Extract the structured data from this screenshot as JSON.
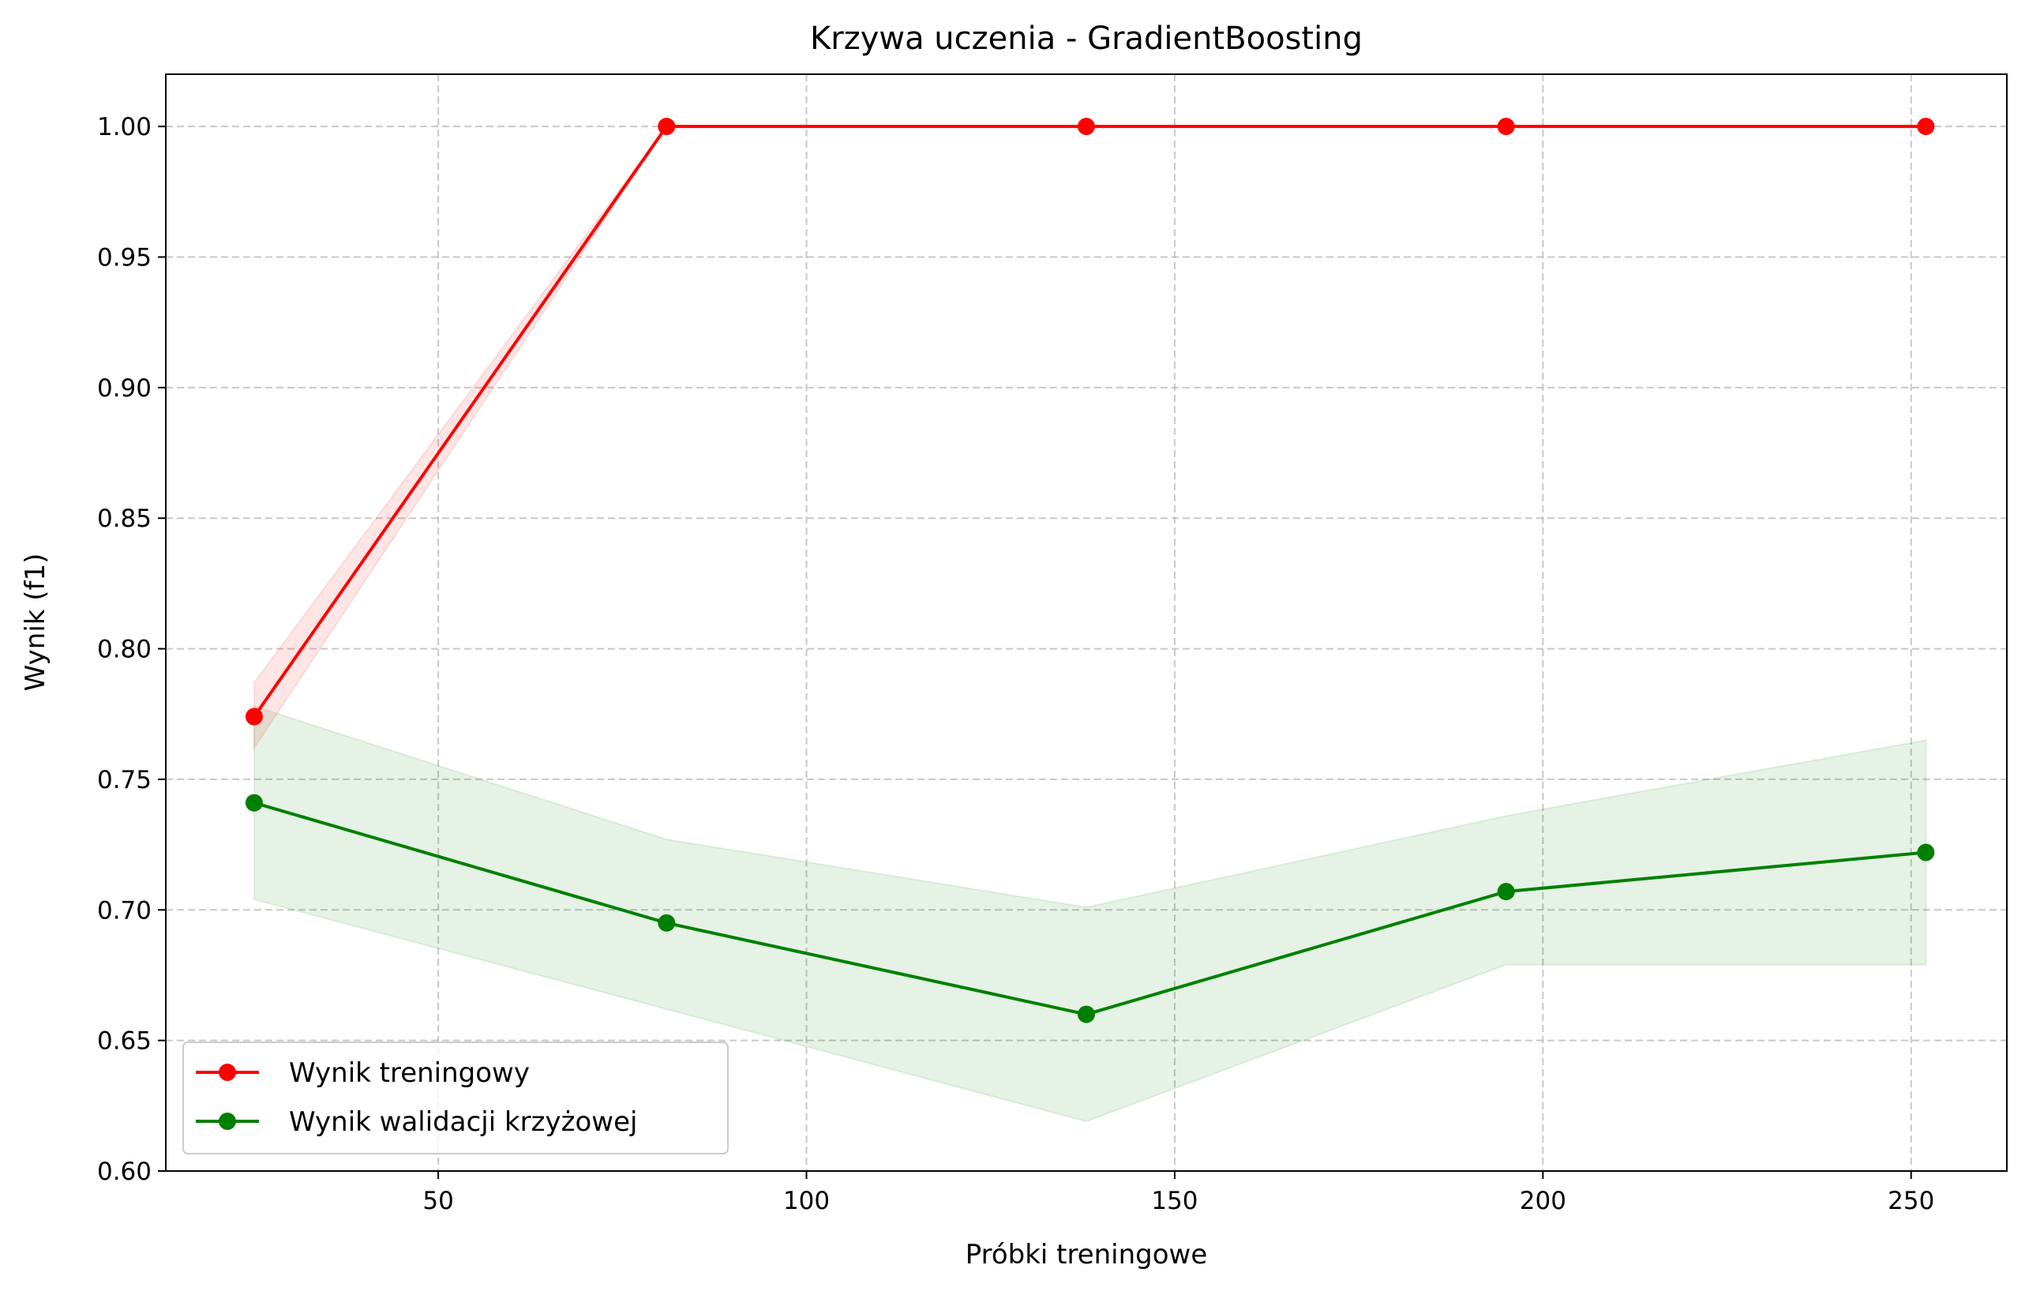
{
  "chart_data": {
    "type": "line",
    "title": "Krzywa uczenia - GradientBoosting",
    "xlabel": "Próbki treningowe",
    "ylabel": "Wynik (f1)",
    "xlim": [
      13,
      263
    ],
    "ylim": [
      0.6,
      1.02
    ],
    "xticks": [
      50,
      100,
      150,
      200,
      250
    ],
    "xtick_labels": [
      "50",
      "100",
      "150",
      "200",
      "250"
    ],
    "yticks": [
      0.6,
      0.65,
      0.7,
      0.75,
      0.8,
      0.85,
      0.9,
      0.95,
      1.0
    ],
    "ytick_labels": [
      "0.60",
      "0.65",
      "0.70",
      "0.75",
      "0.80",
      "0.85",
      "0.90",
      "0.95",
      "1.00"
    ],
    "grid": true,
    "legend_position": "lower-left",
    "x": [
      25,
      81,
      138,
      195,
      252
    ],
    "series": [
      {
        "name": "Wynik treningowy",
        "color": "#ff0000",
        "band_color": "#ff0000",
        "values": [
          0.774,
          1.0,
          1.0,
          1.0,
          1.0
        ],
        "band_lower": [
          0.762,
          1.0,
          1.0,
          1.0,
          1.0
        ],
        "band_upper": [
          0.787,
          1.0,
          1.0,
          1.0,
          1.0
        ]
      },
      {
        "name": "Wynik walidacji krzyżowej",
        "color": "#008000",
        "band_color": "#008000",
        "values": [
          0.741,
          0.695,
          0.66,
          0.707,
          0.722
        ],
        "band_lower": [
          0.704,
          0.662,
          0.619,
          0.679,
          0.679
        ],
        "band_upper": [
          0.778,
          0.727,
          0.701,
          0.736,
          0.765
        ]
      }
    ]
  }
}
